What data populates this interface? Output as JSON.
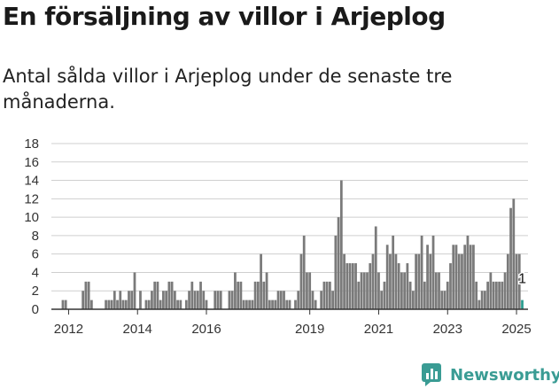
{
  "page": {
    "title": "En försäljning av villor i Arjeplog",
    "subtitle": "Antal sålda villor i Arjeplog under de senaste tre månaderna.",
    "brand": "Newsworthy"
  },
  "colors": {
    "bar": "#7a7a7a",
    "highlight": "#2a9d8f",
    "grid": "#cfcfcf",
    "axis": "#333333",
    "brand": "#3a9c94"
  },
  "chart_data": {
    "type": "bar",
    "title": "",
    "xlabel": "",
    "ylabel": "",
    "ylim": [
      0,
      18
    ],
    "yticks": [
      0,
      2,
      4,
      6,
      8,
      10,
      12,
      14,
      16,
      18
    ],
    "grid": true,
    "xlim": [
      "2011-07",
      "2025-05"
    ],
    "xticks": [
      {
        "x": "2012-01",
        "label": "2012"
      },
      {
        "x": "2014-01",
        "label": "2014"
      },
      {
        "x": "2016-01",
        "label": "2016"
      },
      {
        "x": "2019-01",
        "label": "2019"
      },
      {
        "x": "2021-01",
        "label": "2021"
      },
      {
        "x": "2023-01",
        "label": "2023"
      },
      {
        "x": "2025-01",
        "label": "2025"
      }
    ],
    "series": [
      {
        "x": [
          "2011-11",
          "2011-12",
          "2012-01",
          "2012-02",
          "2012-03",
          "2012-04",
          "2012-05",
          "2012-06",
          "2012-07",
          "2012-08",
          "2012-09",
          "2012-10",
          "2012-11",
          "2012-12",
          "2013-01",
          "2013-02",
          "2013-03",
          "2013-04",
          "2013-05",
          "2013-06",
          "2013-07",
          "2013-08",
          "2013-09",
          "2013-10",
          "2013-11",
          "2013-12",
          "2014-01",
          "2014-02",
          "2014-03",
          "2014-04",
          "2014-05",
          "2014-06",
          "2014-07",
          "2014-08",
          "2014-09",
          "2014-10",
          "2014-11",
          "2014-12",
          "2015-01",
          "2015-02",
          "2015-03",
          "2015-04",
          "2015-05",
          "2015-06",
          "2015-07",
          "2015-08",
          "2015-09",
          "2015-10",
          "2015-11",
          "2015-12",
          "2016-01",
          "2016-02",
          "2016-03",
          "2016-04",
          "2016-05",
          "2016-06",
          "2016-07",
          "2016-08",
          "2016-09",
          "2016-10",
          "2016-11",
          "2016-12",
          "2017-01",
          "2017-02",
          "2017-03",
          "2017-04",
          "2017-05",
          "2017-06",
          "2017-07",
          "2017-08",
          "2017-09",
          "2017-10",
          "2017-11",
          "2017-12",
          "2018-01",
          "2018-02",
          "2018-03",
          "2018-04",
          "2018-05",
          "2018-06",
          "2018-07",
          "2018-08",
          "2018-09",
          "2018-10",
          "2018-11",
          "2018-12",
          "2019-01",
          "2019-02",
          "2019-03",
          "2019-04",
          "2019-05",
          "2019-06",
          "2019-07",
          "2019-08",
          "2019-09",
          "2019-10",
          "2019-11",
          "2019-12",
          "2020-01",
          "2020-02",
          "2020-03",
          "2020-04",
          "2020-05",
          "2020-06",
          "2020-07",
          "2020-08",
          "2020-09",
          "2020-10",
          "2020-11",
          "2020-12",
          "2021-01",
          "2021-02",
          "2021-03",
          "2021-04",
          "2021-05",
          "2021-06",
          "2021-07",
          "2021-08",
          "2021-09",
          "2021-10",
          "2021-11",
          "2021-12",
          "2022-01",
          "2022-02",
          "2022-03",
          "2022-04",
          "2022-05",
          "2022-06",
          "2022-07",
          "2022-08",
          "2022-09",
          "2022-10",
          "2022-11",
          "2022-12",
          "2023-01",
          "2023-02",
          "2023-03",
          "2023-04",
          "2023-05",
          "2023-06",
          "2023-07",
          "2023-08",
          "2023-09",
          "2023-10",
          "2023-11",
          "2023-12",
          "2024-01",
          "2024-02",
          "2024-03",
          "2024-04",
          "2024-05",
          "2024-06",
          "2024-07",
          "2024-08",
          "2024-09",
          "2024-10",
          "2024-11",
          "2024-12"
        ],
        "values": [
          1,
          1,
          0,
          0,
          0,
          0,
          0,
          2,
          3,
          3,
          1,
          0,
          0,
          0,
          0,
          1,
          1,
          1,
          2,
          1,
          2,
          1,
          1,
          2,
          2,
          4,
          0,
          2,
          0,
          1,
          1,
          2,
          3,
          3,
          1,
          2,
          2,
          3,
          3,
          2,
          1,
          1,
          0,
          1,
          2,
          3,
          2,
          2,
          3,
          2,
          1,
          0,
          0,
          2,
          2,
          2,
          0,
          0,
          2,
          2,
          4,
          3,
          3,
          1,
          1,
          1,
          1,
          3,
          3,
          6,
          3,
          4,
          1,
          1,
          1,
          2,
          2,
          2,
          1,
          1,
          0,
          1,
          2,
          6,
          8,
          4,
          4,
          2,
          1,
          0,
          2,
          3,
          3,
          3,
          2,
          8,
          10,
          14,
          6,
          5,
          5,
          5,
          5,
          3,
          4,
          4,
          4,
          5,
          6,
          9,
          4,
          2,
          3,
          7,
          6,
          8,
          6,
          5,
          4,
          4,
          5,
          3,
          2,
          6,
          6,
          8,
          3,
          7,
          6,
          8,
          4,
          4,
          2,
          2,
          3,
          5,
          7,
          7,
          6,
          6,
          7,
          8,
          7,
          7,
          3,
          1,
          2,
          2,
          3,
          4,
          3,
          3,
          3,
          3,
          4,
          6,
          11,
          12
        ]
      },
      {
        "x": [
          "2025-01",
          "2025-02",
          "2025-03"
        ],
        "values": [
          6,
          6,
          1
        ]
      }
    ],
    "annotations": [
      {
        "x": "2025-03",
        "y": 1,
        "text": "1"
      }
    ]
  }
}
